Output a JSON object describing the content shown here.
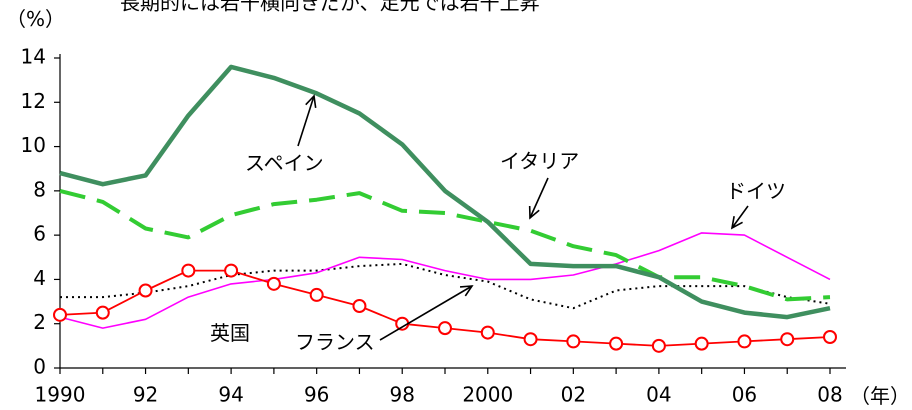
{
  "chart_data": {
    "type": "line",
    "title": "長期的には若干横向きだが、足元では若干上昇",
    "ylabel": "（%）",
    "xlabel": "（年）",
    "x": [
      1990,
      1991,
      1992,
      1993,
      1994,
      1995,
      1996,
      1997,
      1998,
      1999,
      2000,
      2001,
      2002,
      2003,
      2004,
      2005,
      2006,
      2007,
      2008
    ],
    "x_tick_values": [
      1990,
      1992,
      1994,
      1996,
      1998,
      2000,
      2002,
      2004,
      2006,
      2008
    ],
    "x_tick_labels": [
      "1990",
      "92",
      "94",
      "96",
      "98",
      "2000",
      "02",
      "04",
      "06",
      "08"
    ],
    "ylim": [
      0,
      14
    ],
    "y_ticks": [
      0,
      2,
      4,
      6,
      8,
      10,
      12,
      14
    ],
    "grid": false,
    "series": [
      {
        "name": "スペイン",
        "color": "#3f8f5f",
        "style": "solid-thick",
        "values": [
          8.8,
          8.3,
          8.7,
          11.4,
          13.6,
          13.1,
          12.4,
          11.5,
          10.1,
          8.0,
          6.6,
          4.7,
          4.6,
          4.6,
          4.1,
          3.0,
          2.5,
          2.3,
          2.7
        ]
      },
      {
        "name": "イタリア",
        "color": "#33cc33",
        "style": "dashed",
        "values": [
          8.0,
          7.5,
          6.3,
          5.9,
          6.9,
          7.4,
          7.6,
          7.9,
          7.1,
          7.0,
          6.6,
          6.2,
          5.5,
          5.1,
          4.1,
          4.1,
          3.7,
          3.1,
          3.2
        ]
      },
      {
        "name": "ドイツ",
        "color": "#ff00ff",
        "style": "solid-thin",
        "values": [
          2.3,
          1.8,
          2.2,
          3.2,
          3.8,
          4.0,
          4.3,
          5.0,
          4.9,
          4.4,
          4.0,
          4.0,
          4.2,
          4.7,
          5.3,
          6.1,
          6.0,
          5.0,
          4.0
        ]
      },
      {
        "name": "フランス",
        "color": "#000000",
        "style": "dotted",
        "values": [
          3.2,
          3.2,
          3.4,
          3.7,
          4.2,
          4.4,
          4.4,
          4.6,
          4.7,
          4.2,
          3.9,
          3.1,
          2.7,
          3.5,
          3.7,
          3.7,
          3.7,
          3.2,
          2.9
        ]
      },
      {
        "name": "英国",
        "color": "#ff0000",
        "style": "marker-circle",
        "values": [
          2.4,
          2.5,
          3.5,
          4.4,
          4.4,
          3.8,
          3.3,
          2.8,
          2.0,
          1.8,
          1.6,
          1.3,
          1.2,
          1.1,
          1.0,
          1.1,
          1.2,
          1.3,
          1.4
        ]
      }
    ],
    "annotations": [
      {
        "text": "スペイン",
        "series": "スペイン"
      },
      {
        "text": "イタリア",
        "series": "イタリア"
      },
      {
        "text": "ドイツ",
        "series": "ドイツ"
      },
      {
        "text": "フランス",
        "series": "フランス"
      },
      {
        "text": "英国",
        "series": "英国"
      }
    ]
  }
}
